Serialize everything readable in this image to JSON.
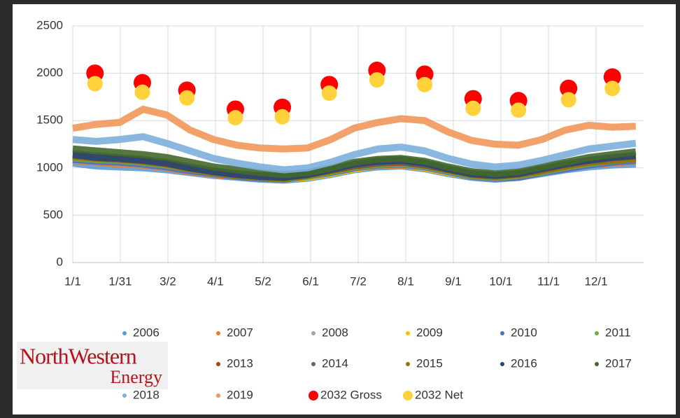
{
  "chart_data": {
    "type": "scatter",
    "x": [
      0,
      15,
      30,
      45,
      60,
      75,
      90,
      105,
      120,
      135,
      150,
      165,
      180,
      195,
      210,
      225,
      240,
      255,
      270,
      285,
      300,
      315,
      330,
      345,
      360
    ],
    "xlim": [
      0,
      365
    ],
    "xticks": [
      {
        "value": 0,
        "label": "1/1"
      },
      {
        "value": 30.4,
        "label": "1/31"
      },
      {
        "value": 60.8,
        "label": "3/2"
      },
      {
        "value": 91.2,
        "label": "4/1"
      },
      {
        "value": 121.7,
        "label": "5/2"
      },
      {
        "value": 152.1,
        "label": "6/1"
      },
      {
        "value": 182.5,
        "label": "7/2"
      },
      {
        "value": 212.9,
        "label": "8/1"
      },
      {
        "value": 243.3,
        "label": "9/1"
      },
      {
        "value": 273.7,
        "label": "10/1"
      },
      {
        "value": 304.2,
        "label": "11/1"
      },
      {
        "value": 334.6,
        "label": "12/1"
      }
    ],
    "ylim": [
      0,
      2500
    ],
    "yticks": [
      0,
      500,
      1000,
      1500,
      2000,
      2500
    ],
    "grid": true,
    "series": [
      {
        "name": "2006",
        "color": "#5b9bd5",
        "values": [
          1050,
          1020,
          1010,
          1000,
          980,
          950,
          920,
          900,
          880,
          870,
          890,
          930,
          980,
          1010,
          1020,
          990,
          940,
          900,
          880,
          900,
          940,
          980,
          1010,
          1030,
          1040
        ]
      },
      {
        "name": "2007",
        "color": "#ed7d31",
        "values": [
          1080,
          1060,
          1040,
          1030,
          1000,
          960,
          930,
          910,
          890,
          880,
          900,
          940,
          990,
          1020,
          1030,
          1000,
          950,
          910,
          890,
          900,
          950,
          990,
          1030,
          1050,
          1070
        ]
      },
      {
        "name": "2008",
        "color": "#a5a5a5",
        "values": [
          1120,
          1100,
          1080,
          1060,
          1040,
          990,
          950,
          930,
          900,
          890,
          910,
          950,
          1000,
          1030,
          1040,
          1010,
          960,
          920,
          900,
          920,
          960,
          1010,
          1060,
          1090,
          1110
        ]
      },
      {
        "name": "2009",
        "color": "#ffc000",
        "values": [
          1100,
          1080,
          1070,
          1050,
          1020,
          980,
          940,
          920,
          890,
          880,
          900,
          940,
          990,
          1030,
          1040,
          1000,
          950,
          910,
          890,
          910,
          950,
          1000,
          1040,
          1070,
          1090
        ]
      },
      {
        "name": "2010",
        "color": "#4472c4",
        "values": [
          1090,
          1070,
          1060,
          1040,
          1010,
          970,
          940,
          910,
          890,
          880,
          910,
          950,
          1000,
          1030,
          1040,
          1010,
          960,
          910,
          890,
          900,
          950,
          990,
          1030,
          1060,
          1080
        ]
      },
      {
        "name": "2011",
        "color": "#70ad47",
        "values": [
          1110,
          1090,
          1080,
          1060,
          1030,
          990,
          950,
          920,
          900,
          890,
          910,
          960,
          1010,
          1040,
          1050,
          1020,
          970,
          920,
          900,
          920,
          960,
          1010,
          1050,
          1080,
          1100
        ]
      },
      {
        "name": "2013",
        "color": "#9e480e",
        "values": [
          1130,
          1110,
          1090,
          1070,
          1040,
          1000,
          960,
          930,
          910,
          900,
          920,
          970,
          1020,
          1050,
          1060,
          1030,
          980,
          930,
          910,
          930,
          970,
          1020,
          1060,
          1090,
          1110
        ]
      },
      {
        "name": "2014",
        "color": "#636363",
        "values": [
          1150,
          1130,
          1110,
          1090,
          1060,
          1010,
          970,
          940,
          920,
          910,
          930,
          980,
          1030,
          1060,
          1070,
          1040,
          990,
          940,
          920,
          940,
          980,
          1030,
          1070,
          1100,
          1120
        ]
      },
      {
        "name": "2015",
        "color": "#997300",
        "values": [
          1120,
          1100,
          1090,
          1070,
          1040,
          990,
          950,
          920,
          900,
          890,
          920,
          970,
          1040,
          1080,
          1090,
          1050,
          990,
          940,
          910,
          930,
          970,
          1020,
          1060,
          1080,
          1100
        ]
      },
      {
        "name": "2016",
        "color": "#264478",
        "values": [
          1140,
          1110,
          1100,
          1080,
          1050,
          1000,
          960,
          930,
          910,
          900,
          930,
          980,
          1040,
          1070,
          1080,
          1050,
          990,
          940,
          920,
          940,
          990,
          1040,
          1080,
          1110,
          1130
        ]
      },
      {
        "name": "2017",
        "color": "#43682b",
        "values": [
          1200,
          1180,
          1160,
          1140,
          1110,
          1060,
          1010,
          980,
          950,
          930,
          950,
          1000,
          1060,
          1090,
          1100,
          1070,
          1010,
          960,
          940,
          960,
          1010,
          1060,
          1110,
          1140,
          1170
        ]
      },
      {
        "name": "2018",
        "color": "#7cafdd",
        "values": [
          1300,
          1280,
          1300,
          1330,
          1260,
          1180,
          1100,
          1050,
          1010,
          980,
          1000,
          1060,
          1140,
          1200,
          1220,
          1180,
          1100,
          1040,
          1010,
          1030,
          1080,
          1140,
          1200,
          1230,
          1260
        ]
      },
      {
        "name": "2019",
        "color": "#f1975a",
        "values": [
          1420,
          1460,
          1480,
          1620,
          1560,
          1400,
          1300,
          1240,
          1210,
          1200,
          1210,
          1300,
          1420,
          1480,
          1520,
          1500,
          1380,
          1290,
          1250,
          1240,
          1300,
          1400,
          1450,
          1430,
          1440
        ]
      },
      {
        "name": "2032 Gross",
        "color": "#ff0000",
        "x": [
          14.2,
          44.5,
          73,
          104,
          134,
          164,
          194.5,
          225,
          256,
          285,
          317,
          345
        ],
        "values": [
          2000,
          1900,
          1820,
          1620,
          1640,
          1880,
          2030,
          1990,
          1730,
          1710,
          1840,
          1960
        ]
      },
      {
        "name": "2032 Net",
        "color": "#ffd13b",
        "x": [
          14.2,
          44.5,
          73,
          104,
          134,
          164,
          194.5,
          225,
          256,
          285,
          317,
          345
        ],
        "values": [
          1890,
          1800,
          1740,
          1530,
          1540,
          1790,
          1930,
          1880,
          1630,
          1610,
          1720,
          1840
        ]
      }
    ]
  },
  "logo": {
    "name": "NorthWestern",
    "sub": "Energy"
  }
}
